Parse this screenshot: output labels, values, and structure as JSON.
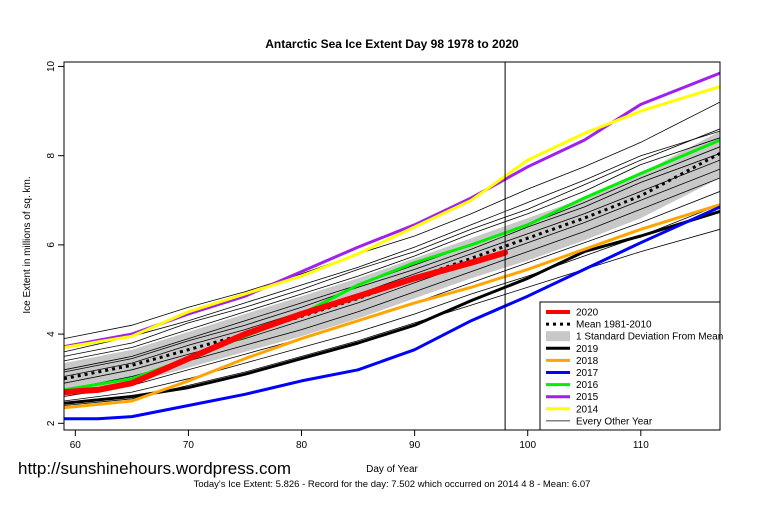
{
  "watermark": "http://sunshinehours.wordpress.com",
  "footer": "Today's Ice Extent: 5.826  - Record for the day: 7.502 which occurred on 2014 4 8  - Mean: 6.07",
  "chart_data": {
    "type": "line",
    "title": "Antarctic Sea Ice Extent Day 98 1978 to 2020",
    "xlabel": "Day of Year",
    "ylabel": "Ice Extent in millions of sq. km.",
    "xlim": [
      59,
      117
    ],
    "ylim": [
      1.85,
      10.1
    ],
    "xticks": [
      60,
      70,
      80,
      90,
      100,
      110
    ],
    "yticks": [
      2,
      4,
      6,
      8,
      10
    ],
    "current_day": 98,
    "legend_position": "bottom-right",
    "std_band": {
      "name": "1 Standard Deviation From Mean",
      "x": [
        59,
        65,
        70,
        75,
        80,
        85,
        90,
        95,
        100,
        105,
        110,
        117
      ],
      "upper": [
        3.35,
        3.65,
        4.05,
        4.45,
        4.85,
        5.25,
        5.7,
        6.15,
        6.6,
        7.05,
        7.6,
        8.55
      ],
      "lower": [
        2.6,
        2.9,
        3.25,
        3.6,
        3.95,
        4.35,
        4.8,
        5.25,
        5.65,
        6.1,
        6.6,
        7.5
      ]
    },
    "series": [
      {
        "name": "2019",
        "color": "#000000",
        "width": 3,
        "x": [
          59,
          65,
          70,
          75,
          80,
          85,
          90,
          95,
          100,
          105,
          110,
          117
        ],
        "values": [
          2.45,
          2.6,
          2.8,
          3.1,
          3.45,
          3.8,
          4.2,
          4.75,
          5.25,
          5.85,
          6.2,
          6.75
        ]
      },
      {
        "name": "2018",
        "color": "#ffa500",
        "width": 3,
        "x": [
          59,
          65,
          70,
          75,
          80,
          85,
          90,
          95,
          100,
          105,
          110,
          117
        ],
        "values": [
          2.35,
          2.5,
          2.95,
          3.45,
          3.9,
          4.3,
          4.7,
          5.05,
          5.45,
          5.9,
          6.35,
          6.9
        ]
      },
      {
        "name": "2017",
        "color": "#0000ff",
        "width": 3,
        "x": [
          59,
          62,
          65,
          70,
          75,
          80,
          85,
          90,
          95,
          100,
          105,
          110,
          117
        ],
        "values": [
          2.1,
          2.1,
          2.15,
          2.4,
          2.65,
          2.95,
          3.2,
          3.65,
          4.3,
          4.85,
          5.45,
          6.05,
          6.85
        ]
      },
      {
        "name": "2016",
        "color": "#00ee00",
        "width": 3,
        "x": [
          59,
          65,
          70,
          75,
          80,
          85,
          90,
          95,
          100,
          105,
          110,
          117
        ],
        "values": [
          2.75,
          3.0,
          3.45,
          3.95,
          4.45,
          5.1,
          5.6,
          6.0,
          6.45,
          7.05,
          7.6,
          8.35
        ]
      },
      {
        "name": "2015",
        "color": "#a020f0",
        "width": 3,
        "x": [
          59,
          65,
          70,
          75,
          80,
          85,
          90,
          95,
          100,
          105,
          110,
          117
        ],
        "values": [
          3.72,
          4.0,
          4.45,
          4.85,
          5.4,
          5.95,
          6.45,
          7.05,
          7.75,
          8.35,
          9.15,
          9.85
        ]
      },
      {
        "name": "2014",
        "color": "#ffff00",
        "width": 3,
        "x": [
          59,
          65,
          70,
          75,
          80,
          85,
          90,
          95,
          100,
          105,
          110,
          117
        ],
        "values": [
          3.7,
          3.95,
          4.5,
          4.9,
          5.3,
          5.8,
          6.4,
          7.0,
          7.9,
          8.5,
          9.0,
          9.55
        ]
      },
      {
        "name": "2020",
        "color": "#ff0000",
        "width": 6,
        "x": [
          59,
          62,
          65,
          70,
          75,
          80,
          85,
          90,
          95,
          98
        ],
        "values": [
          2.7,
          2.75,
          2.9,
          3.45,
          4.0,
          4.45,
          4.85,
          5.25,
          5.6,
          5.826
        ]
      },
      {
        "name": "Mean 1981-2010",
        "color": "#000000",
        "width": 3,
        "dash": "3,4",
        "x": [
          59,
          65,
          70,
          75,
          80,
          85,
          90,
          95,
          100,
          105,
          110,
          117
        ],
        "values": [
          3.0,
          3.3,
          3.65,
          4.0,
          4.4,
          4.8,
          5.25,
          5.7,
          6.15,
          6.6,
          7.1,
          8.05
        ]
      }
    ],
    "every_other_year": {
      "name": "Every Other Year",
      "x": [
        59,
        65,
        70,
        75,
        80,
        85,
        90,
        95,
        100,
        105,
        110,
        117
      ],
      "lines": [
        [
          3.9,
          4.2,
          4.6,
          4.95,
          5.35,
          5.8,
          6.2,
          6.7,
          7.25,
          7.75,
          8.3,
          9.2
        ],
        [
          3.6,
          3.95,
          4.3,
          4.7,
          5.1,
          5.5,
          5.95,
          6.45,
          6.95,
          7.45,
          8.0,
          8.55
        ],
        [
          3.4,
          3.7,
          4.1,
          4.5,
          4.9,
          5.3,
          5.75,
          6.25,
          6.7,
          7.2,
          7.8,
          8.4
        ],
        [
          3.2,
          3.5,
          3.9,
          4.3,
          4.7,
          5.1,
          5.55,
          6.0,
          6.45,
          6.95,
          7.5,
          8.2
        ],
        [
          3.05,
          3.35,
          3.75,
          4.1,
          4.5,
          4.9,
          5.35,
          5.8,
          6.25,
          6.7,
          7.2,
          7.9
        ],
        [
          2.9,
          3.2,
          3.55,
          3.9,
          4.3,
          4.7,
          5.15,
          5.6,
          6.05,
          6.5,
          7.0,
          7.7
        ],
        [
          2.75,
          3.05,
          3.4,
          3.75,
          4.1,
          4.5,
          4.95,
          5.4,
          5.85,
          6.3,
          6.8,
          7.5
        ],
        [
          2.6,
          2.85,
          3.2,
          3.55,
          3.9,
          4.3,
          4.7,
          5.15,
          5.6,
          6.05,
          6.5,
          7.2
        ],
        [
          2.5,
          2.7,
          3.0,
          3.35,
          3.7,
          4.05,
          4.45,
          4.9,
          5.3,
          5.75,
          6.2,
          6.9
        ],
        [
          2.4,
          2.55,
          2.85,
          3.15,
          3.5,
          3.85,
          4.25,
          4.65,
          5.05,
          5.45,
          5.85,
          6.35
        ],
        [
          3.5,
          3.8,
          4.25,
          4.6,
          5.0,
          5.45,
          5.85,
          6.35,
          6.8,
          7.35,
          7.9,
          8.6
        ],
        [
          3.15,
          3.45,
          3.85,
          4.2,
          4.6,
          5.05,
          5.45,
          5.9,
          6.4,
          6.85,
          7.4,
          8.05
        ]
      ]
    },
    "legend": [
      "2020",
      "Mean 1981-2010",
      "1 Standard Deviation From Mean",
      "2019",
      "2018",
      "2017",
      "2016",
      "2015",
      "2014",
      "Every Other Year"
    ]
  }
}
